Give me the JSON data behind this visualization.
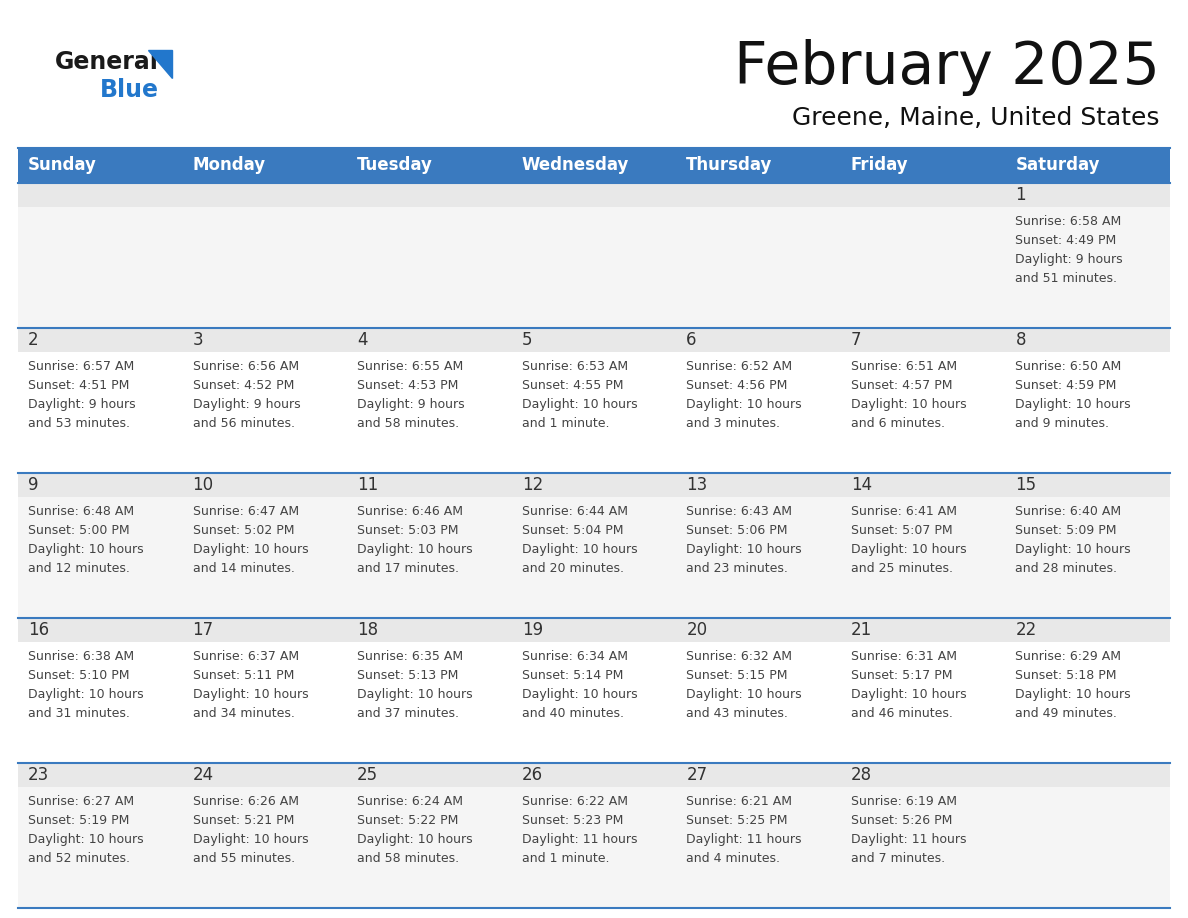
{
  "title": "February 2025",
  "subtitle": "Greene, Maine, United States",
  "days_of_week": [
    "Sunday",
    "Monday",
    "Tuesday",
    "Wednesday",
    "Thursday",
    "Friday",
    "Saturday"
  ],
  "header_bg": "#3a7abf",
  "header_text": "#ffffff",
  "day_strip_bg": "#e8e8e8",
  "cell_bg_odd": "#f5f5f5",
  "cell_bg_even": "#ffffff",
  "cell_border": "#3a7abf",
  "day_num_color": "#333333",
  "info_text_color": "#444444",
  "logo_general_color": "#1a1a1a",
  "logo_blue_color": "#2277cc",
  "logo_triangle_color": "#2277cc",
  "calendar_data": [
    {
      "day": 1,
      "col": 6,
      "row": 0,
      "sunrise": "6:58 AM",
      "sunset": "4:49 PM",
      "daylight": "9 hours\nand 51 minutes."
    },
    {
      "day": 2,
      "col": 0,
      "row": 1,
      "sunrise": "6:57 AM",
      "sunset": "4:51 PM",
      "daylight": "9 hours\nand 53 minutes."
    },
    {
      "day": 3,
      "col": 1,
      "row": 1,
      "sunrise": "6:56 AM",
      "sunset": "4:52 PM",
      "daylight": "9 hours\nand 56 minutes."
    },
    {
      "day": 4,
      "col": 2,
      "row": 1,
      "sunrise": "6:55 AM",
      "sunset": "4:53 PM",
      "daylight": "9 hours\nand 58 minutes."
    },
    {
      "day": 5,
      "col": 3,
      "row": 1,
      "sunrise": "6:53 AM",
      "sunset": "4:55 PM",
      "daylight": "10 hours\nand 1 minute."
    },
    {
      "day": 6,
      "col": 4,
      "row": 1,
      "sunrise": "6:52 AM",
      "sunset": "4:56 PM",
      "daylight": "10 hours\nand 3 minutes."
    },
    {
      "day": 7,
      "col": 5,
      "row": 1,
      "sunrise": "6:51 AM",
      "sunset": "4:57 PM",
      "daylight": "10 hours\nand 6 minutes."
    },
    {
      "day": 8,
      "col": 6,
      "row": 1,
      "sunrise": "6:50 AM",
      "sunset": "4:59 PM",
      "daylight": "10 hours\nand 9 minutes."
    },
    {
      "day": 9,
      "col": 0,
      "row": 2,
      "sunrise": "6:48 AM",
      "sunset": "5:00 PM",
      "daylight": "10 hours\nand 12 minutes."
    },
    {
      "day": 10,
      "col": 1,
      "row": 2,
      "sunrise": "6:47 AM",
      "sunset": "5:02 PM",
      "daylight": "10 hours\nand 14 minutes."
    },
    {
      "day": 11,
      "col": 2,
      "row": 2,
      "sunrise": "6:46 AM",
      "sunset": "5:03 PM",
      "daylight": "10 hours\nand 17 minutes."
    },
    {
      "day": 12,
      "col": 3,
      "row": 2,
      "sunrise": "6:44 AM",
      "sunset": "5:04 PM",
      "daylight": "10 hours\nand 20 minutes."
    },
    {
      "day": 13,
      "col": 4,
      "row": 2,
      "sunrise": "6:43 AM",
      "sunset": "5:06 PM",
      "daylight": "10 hours\nand 23 minutes."
    },
    {
      "day": 14,
      "col": 5,
      "row": 2,
      "sunrise": "6:41 AM",
      "sunset": "5:07 PM",
      "daylight": "10 hours\nand 25 minutes."
    },
    {
      "day": 15,
      "col": 6,
      "row": 2,
      "sunrise": "6:40 AM",
      "sunset": "5:09 PM",
      "daylight": "10 hours\nand 28 minutes."
    },
    {
      "day": 16,
      "col": 0,
      "row": 3,
      "sunrise": "6:38 AM",
      "sunset": "5:10 PM",
      "daylight": "10 hours\nand 31 minutes."
    },
    {
      "day": 17,
      "col": 1,
      "row": 3,
      "sunrise": "6:37 AM",
      "sunset": "5:11 PM",
      "daylight": "10 hours\nand 34 minutes."
    },
    {
      "day": 18,
      "col": 2,
      "row": 3,
      "sunrise": "6:35 AM",
      "sunset": "5:13 PM",
      "daylight": "10 hours\nand 37 minutes."
    },
    {
      "day": 19,
      "col": 3,
      "row": 3,
      "sunrise": "6:34 AM",
      "sunset": "5:14 PM",
      "daylight": "10 hours\nand 40 minutes."
    },
    {
      "day": 20,
      "col": 4,
      "row": 3,
      "sunrise": "6:32 AM",
      "sunset": "5:15 PM",
      "daylight": "10 hours\nand 43 minutes."
    },
    {
      "day": 21,
      "col": 5,
      "row": 3,
      "sunrise": "6:31 AM",
      "sunset": "5:17 PM",
      "daylight": "10 hours\nand 46 minutes."
    },
    {
      "day": 22,
      "col": 6,
      "row": 3,
      "sunrise": "6:29 AM",
      "sunset": "5:18 PM",
      "daylight": "10 hours\nand 49 minutes."
    },
    {
      "day": 23,
      "col": 0,
      "row": 4,
      "sunrise": "6:27 AM",
      "sunset": "5:19 PM",
      "daylight": "10 hours\nand 52 minutes."
    },
    {
      "day": 24,
      "col": 1,
      "row": 4,
      "sunrise": "6:26 AM",
      "sunset": "5:21 PM",
      "daylight": "10 hours\nand 55 minutes."
    },
    {
      "day": 25,
      "col": 2,
      "row": 4,
      "sunrise": "6:24 AM",
      "sunset": "5:22 PM",
      "daylight": "10 hours\nand 58 minutes."
    },
    {
      "day": 26,
      "col": 3,
      "row": 4,
      "sunrise": "6:22 AM",
      "sunset": "5:23 PM",
      "daylight": "11 hours\nand 1 minute."
    },
    {
      "day": 27,
      "col": 4,
      "row": 4,
      "sunrise": "6:21 AM",
      "sunset": "5:25 PM",
      "daylight": "11 hours\nand 4 minutes."
    },
    {
      "day": 28,
      "col": 5,
      "row": 4,
      "sunrise": "6:19 AM",
      "sunset": "5:26 PM",
      "daylight": "11 hours\nand 7 minutes."
    }
  ]
}
